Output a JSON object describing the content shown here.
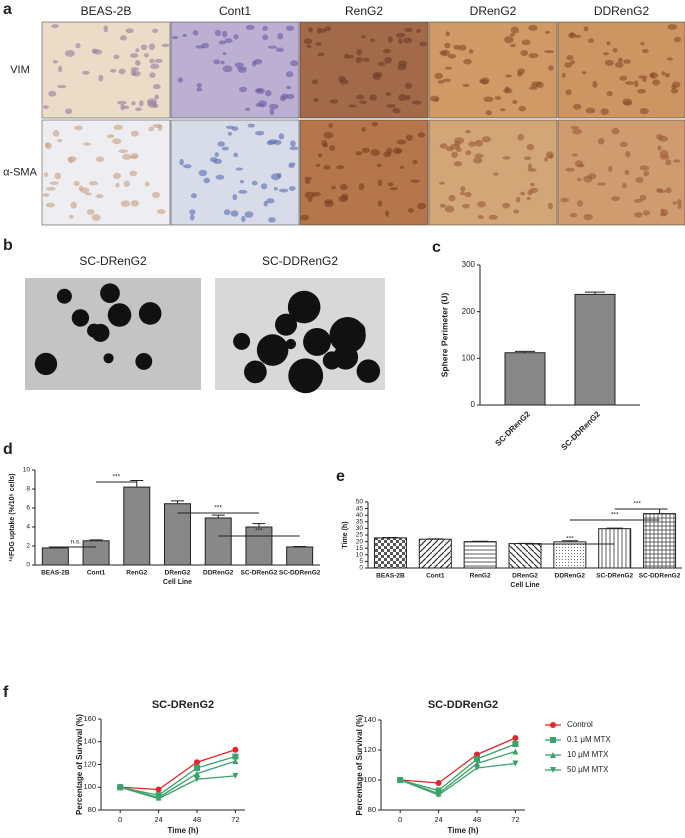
{
  "panel_labels": [
    "a",
    "b",
    "c",
    "d",
    "e",
    "f"
  ],
  "panel_a": {
    "columns": [
      "BEAS-2B",
      "Cont1",
      "RenG2",
      "DRenG2",
      "DDRenG2"
    ],
    "rows": [
      "VIM",
      "α-SMA"
    ]
  },
  "panel_b": {
    "titles": [
      "SC-DRenG2",
      "SC-DDRenG2"
    ]
  },
  "chart_data": [
    {
      "type": "bar",
      "ylabel": "Sphere Perimeter (U)",
      "categories": [
        "SC-DRenG2",
        "SC-DDRenG2"
      ],
      "values": [
        112,
        237
      ],
      "errors": [
        3,
        5
      ],
      "color": "#888888",
      "ylim": [
        0,
        300
      ],
      "yticks": [
        0,
        100,
        200,
        300
      ]
    },
    {
      "type": "bar",
      "ylabel": "¹⁸FDG uptake (%/10⁶ cells)",
      "xlabel": "Cell Line",
      "categories": [
        "BEAS-2B",
        "Cont1",
        "RenG2",
        "DRenG2",
        "DDRenG2",
        "SC-DRenG2",
        "SC-DDRenG2"
      ],
      "values": [
        1.8,
        2.55,
        8.2,
        6.45,
        4.95,
        4.0,
        1.9
      ],
      "errors": [
        0.1,
        0.1,
        0.7,
        0.3,
        0.3,
        0.35,
        0.05
      ],
      "color": "#888888",
      "ylim": [
        0,
        10
      ],
      "yticks": [
        0,
        2,
        4,
        6,
        8,
        10
      ],
      "annotations": [
        "n.s.",
        "***",
        "***",
        "***"
      ]
    },
    {
      "type": "bar",
      "ylabel": "Time (h)",
      "xlabel": "Cell Line",
      "categories": [
        "BEAS-2B",
        "Cont1",
        "RenG2",
        "DRenG2",
        "DDRenG2",
        "SC-DRenG2",
        "SC-DDRenG2"
      ],
      "values": [
        22.8,
        21.8,
        20.0,
        18.5,
        19.8,
        29.8,
        41.2
      ],
      "errors": [
        0.3,
        0.3,
        0.3,
        0.2,
        0.8,
        0.4,
        3.5
      ],
      "color": "#ffffff",
      "fill_patterns": [
        "checker",
        "diagonal",
        "horizontal",
        "back-diagonal",
        "dots",
        "vertical",
        "grid"
      ],
      "ylim": [
        0,
        50
      ],
      "yticks": [
        0,
        5,
        10,
        15,
        20,
        25,
        30,
        35,
        40,
        45,
        50
      ],
      "annotations": [
        "***",
        "***",
        "***"
      ]
    },
    {
      "type": "line",
      "title": "SC-DRenG2",
      "xlabel": "Time (h)",
      "ylabel": "Percentage of Survival (%)",
      "x": [
        0,
        24,
        48,
        72
      ],
      "xlim": [
        -12,
        78
      ],
      "xticks": [
        0,
        24,
        48,
        72
      ],
      "ylim": [
        80,
        160
      ],
      "yticks": [
        80,
        100,
        120,
        140,
        160
      ],
      "series": [
        {
          "color": "#e3262b",
          "marker": "circle",
          "values": [
            100,
            98,
            122,
            133
          ]
        },
        {
          "color": "#3aa36a",
          "marker": "square",
          "values": [
            100,
            93,
            117,
            127
          ]
        },
        {
          "color": "#3aa36a",
          "marker": "triangle-up",
          "values": [
            100,
            91,
            112,
            123
          ]
        },
        {
          "color": "#3aa36a",
          "marker": "triangle-down",
          "values": [
            100,
            90,
            107,
            110
          ]
        }
      ]
    },
    {
      "type": "line",
      "title": "SC-DDRenG2",
      "xlabel": "Time (h)",
      "ylabel": "Percentage of Survival (%)",
      "x": [
        0,
        24,
        48,
        72
      ],
      "xlim": [
        -12,
        78
      ],
      "xticks": [
        0,
        24,
        48,
        72
      ],
      "ylim": [
        80,
        140
      ],
      "yticks": [
        80,
        100,
        120,
        140
      ],
      "legend": "right",
      "series": [
        {
          "name": "Control",
          "color": "#e3262b",
          "marker": "circle",
          "values": [
            100,
            98,
            117,
            128
          ]
        },
        {
          "name": "0.1 μM MTX",
          "color": "#3aa36a",
          "marker": "square",
          "values": [
            100,
            93,
            114,
            124
          ]
        },
        {
          "name": "10 μM MTX",
          "color": "#3aa36a",
          "marker": "triangle-up",
          "values": [
            100,
            91,
            111,
            119
          ]
        },
        {
          "name": "50 μM MTX",
          "color": "#3aa36a",
          "marker": "triangle-down",
          "values": [
            100,
            90,
            108,
            111
          ]
        }
      ]
    }
  ]
}
